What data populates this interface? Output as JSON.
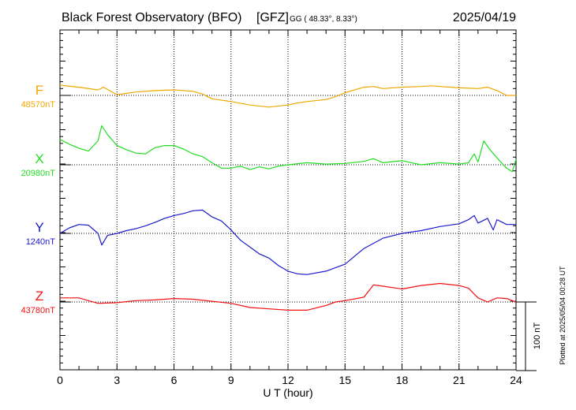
{
  "chart_data": {
    "type": "line",
    "title": "Black Forest Observatory (BFO)",
    "source": "[GFZ]",
    "coords_label": "GG ( 48.33°,   8.33°)",
    "date": "2025/04/19",
    "xlabel": "U T (hour)",
    "x_ticks": [
      "0",
      "3",
      "6",
      "9",
      "12",
      "15",
      "18",
      "21",
      "24"
    ],
    "xlim": [
      0,
      24
    ],
    "grid": true,
    "scale_label": "100 nT",
    "scale_nT": 100,
    "plotted_note": "Plotted at 2025/05/04 00:28 UT",
    "series": [
      {
        "name": "F",
        "baseline_label": "48570nT",
        "baseline_nT": 48570,
        "color": "#f0a800",
        "x": [
          0,
          1,
          2,
          2.3,
          2.6,
          3,
          3.5,
          4,
          5,
          6,
          7,
          7.5,
          8,
          9,
          10,
          11,
          12,
          12.5,
          13,
          14,
          14.5,
          15,
          16,
          16.5,
          17,
          18,
          19,
          19.5,
          20,
          21,
          22,
          22.5,
          23,
          23.5,
          24
        ],
        "y": [
          48585,
          48582,
          48578,
          48582,
          48577,
          48571,
          48573,
          48575,
          48577,
          48578,
          48576,
          48572,
          48565,
          48561,
          48556,
          48553,
          48556,
          48559,
          48561,
          48564,
          48568,
          48574,
          48582,
          48583,
          48580,
          48582,
          48583,
          48584,
          48583,
          48581,
          48580,
          48582,
          48577,
          48570,
          48570
        ]
      },
      {
        "name": "X",
        "baseline_label": "20980nT",
        "baseline_nT": 20980,
        "color": "#22dd22",
        "x": [
          0,
          0.5,
          1,
          1.5,
          2,
          2.2,
          2.5,
          3,
          3.5,
          4,
          4.5,
          5,
          5.5,
          6,
          6.5,
          7,
          7.5,
          8,
          8.5,
          9,
          9.5,
          10,
          10.5,
          11,
          11.5,
          12,
          13,
          14,
          15,
          16,
          16.5,
          17,
          18,
          19,
          20,
          21,
          21.5,
          21.8,
          22,
          22.3,
          22.6,
          23,
          23.5,
          23.8,
          24
        ],
        "y": [
          21017,
          21010,
          21004,
          21000,
          21015,
          21037,
          21024,
          21008,
          21002,
          20997,
          20996,
          21005,
          21008,
          21008,
          21003,
          20996,
          20992,
          20983,
          20975,
          20975,
          20978,
          20973,
          20977,
          20974,
          20978,
          20980,
          20983,
          20981,
          20982,
          20985,
          20989,
          20983,
          20986,
          20980,
          20983,
          20981,
          20983,
          20996,
          20984,
          21015,
          21003,
          20990,
          20975,
          20970,
          20988
        ]
      },
      {
        "name": "Y",
        "baseline_label": "1240nT",
        "baseline_nT": 1240,
        "color": "#1a1acc",
        "x": [
          0,
          0.5,
          1,
          1.5,
          2,
          2.2,
          2.5,
          3,
          3.5,
          4,
          4.5,
          5,
          5.5,
          6,
          6.5,
          7,
          7.5,
          8,
          8.5,
          9,
          9.5,
          10,
          10.5,
          11,
          11.5,
          12,
          12.5,
          13,
          14,
          15,
          16,
          17,
          18,
          19,
          20,
          21,
          21.5,
          21.8,
          22,
          22.5,
          22.8,
          23,
          23.5,
          24
        ],
        "y": [
          1240,
          1248,
          1253,
          1252,
          1240,
          1223,
          1237,
          1240,
          1244,
          1247,
          1251,
          1256,
          1262,
          1266,
          1269,
          1273,
          1274,
          1264,
          1258,
          1245,
          1230,
          1220,
          1210,
          1204,
          1193,
          1185,
          1181,
          1180,
          1185,
          1195,
          1218,
          1233,
          1240,
          1244,
          1250,
          1254,
          1260,
          1266,
          1255,
          1262,
          1245,
          1260,
          1253,
          1253
        ]
      },
      {
        "name": "Z",
        "baseline_label": "43780nT",
        "baseline_nT": 43780,
        "color": "#ee1111",
        "x": [
          0,
          1,
          1.5,
          2,
          3,
          4,
          5,
          6,
          7,
          8,
          9,
          10,
          11,
          12,
          13,
          14,
          14.5,
          15,
          16,
          16.5,
          17,
          18,
          19,
          20,
          21,
          21.5,
          22,
          22.5,
          23,
          23.5,
          24
        ],
        "y": [
          43786,
          43786,
          43782,
          43778,
          43779,
          43782,
          43783,
          43785,
          43784,
          43781,
          43778,
          43772,
          43770,
          43768,
          43768,
          43775,
          43780,
          43782,
          43787,
          43805,
          43803,
          43799,
          43804,
          43807,
          43804,
          43800,
          43786,
          43780,
          43786,
          43785,
          43780
        ]
      }
    ]
  }
}
